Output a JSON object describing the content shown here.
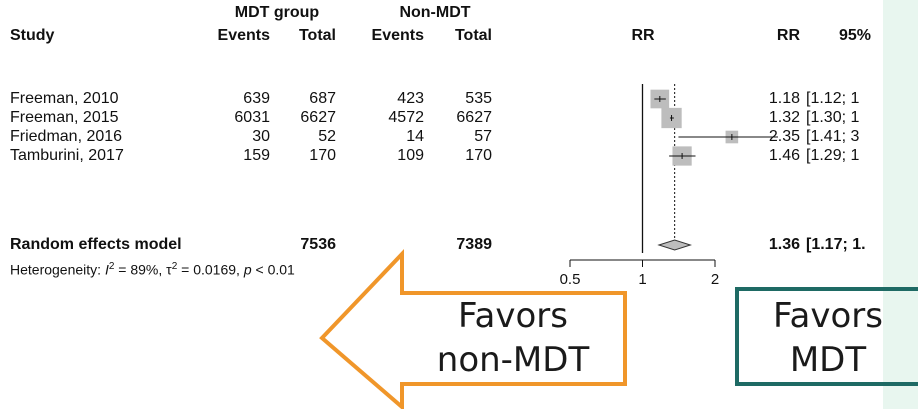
{
  "headers": {
    "study": "Study",
    "group1": "MDT group",
    "group2": "Non-MDT",
    "events": "Events",
    "total": "Total",
    "rr_plot": "RR",
    "rr_col": "RR",
    "ci_col": "95%"
  },
  "studies": [
    {
      "name": "Freeman, 2010",
      "e1": "639",
      "t1": "687",
      "e2": "423",
      "t2": "535",
      "rr": "1.18",
      "ci": "[1.12; 1"
    },
    {
      "name": "Freeman, 2015",
      "e1": "6031",
      "t1": "6627",
      "e2": "4572",
      "t2": "6627",
      "rr": "1.32",
      "ci": "[1.30; 1"
    },
    {
      "name": "Friedman, 2016",
      "e1": "30",
      "t1": "52",
      "e2": "14",
      "t2": "57",
      "rr": "2.35",
      "ci": "[1.41; 3"
    },
    {
      "name": "Tamburini, 2017",
      "e1": "159",
      "t1": "170",
      "e2": "109",
      "t2": "170",
      "rr": "1.46",
      "ci": "[1.29; 1"
    }
  ],
  "pooled": {
    "name": "Random effects model",
    "t1": "7536",
    "t2": "7389",
    "rr": "1.36",
    "ci": "[1.17; 1."
  },
  "heterogeneity": {
    "prefix": "Heterogeneity: ",
    "i2_sym": "I",
    "i2_sup": "2",
    "i2_val": " = 89%, ",
    "tau_sym": "τ",
    "tau_sup": "2",
    "tau_val": " = 0.0169, ",
    "p_sym": "p",
    "p_val": " < 0.01"
  },
  "arrows": {
    "left": {
      "line1": "Favors",
      "line2": "non-MDT",
      "color": "#f0962a"
    },
    "right": {
      "line1": "Favors",
      "line2": "MDT",
      "color": "#1e6a64"
    }
  },
  "colors": {
    "side_panel": "#e8f6ef",
    "box": "#bdbdbd"
  },
  "chart_data": {
    "type": "forest",
    "scale": "log",
    "xlim": [
      0.5,
      2
    ],
    "xticks": [
      "0.5",
      "1",
      "2"
    ],
    "null_value": 1,
    "pooled_dashed_line": 1.36,
    "studies": [
      {
        "name": "Freeman, 2010",
        "rr": 1.18,
        "ci_low": 1.12,
        "ci_high": 1.25,
        "weight": 0.22
      },
      {
        "name": "Freeman, 2015",
        "rr": 1.32,
        "ci_low": 1.3,
        "ci_high": 1.35,
        "weight": 0.28
      },
      {
        "name": "Friedman, 2016",
        "rr": 2.35,
        "ci_low": 1.41,
        "ci_high": 3.9,
        "weight": 0.06
      },
      {
        "name": "Tamburini, 2017",
        "rr": 1.46,
        "ci_low": 1.29,
        "ci_high": 1.66,
        "weight": 0.24
      }
    ],
    "pooled": {
      "rr": 1.36,
      "ci_low": 1.17,
      "ci_high": 1.58
    }
  }
}
